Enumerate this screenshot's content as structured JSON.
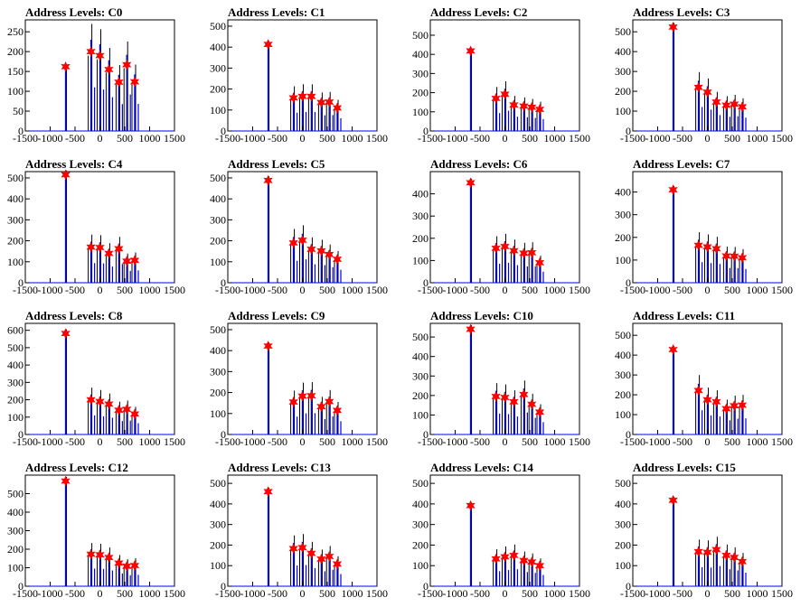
{
  "chart_data": [
    {
      "type": "histogram",
      "title": "Address Levels: C0",
      "xlim": [
        -1500,
        1500
      ],
      "ylim": [
        0,
        280
      ],
      "xticks": [
        -1500,
        -1000,
        -500,
        0,
        500,
        1000,
        1500
      ],
      "yticks": [
        0,
        50,
        100,
        150,
        200,
        250
      ],
      "xtick_labels": [
        "-1500",
        "-1000",
        "-500",
        "0",
        "500",
        "1000",
        "1500"
      ],
      "ytick_labels": [
        "0",
        "50",
        "100",
        "150",
        "200",
        "250"
      ],
      "markers": [
        {
          "x": -690,
          "y": 162
        },
        {
          "x": -180,
          "y": 200
        },
        {
          "x": 0,
          "y": 190
        },
        {
          "x": 180,
          "y": 155
        },
        {
          "x": 380,
          "y": 123
        },
        {
          "x": 540,
          "y": 167
        },
        {
          "x": 700,
          "y": 124
        }
      ]
    },
    {
      "type": "histogram",
      "title": "Address Levels: C1",
      "xlim": [
        -1500,
        1500
      ],
      "ylim": [
        0,
        530
      ],
      "xticks": [
        -1500,
        -1000,
        -500,
        0,
        500,
        1000,
        1500
      ],
      "yticks": [
        0,
        100,
        200,
        300,
        400,
        500
      ],
      "xtick_labels": [
        "-1500",
        "-1000",
        "-500",
        "0",
        "500",
        "1000",
        "1500"
      ],
      "ytick_labels": [
        "0",
        "100",
        "200",
        "300",
        "400",
        "500"
      ],
      "markers": [
        {
          "x": -690,
          "y": 413
        },
        {
          "x": -180,
          "y": 158
        },
        {
          "x": 0,
          "y": 165
        },
        {
          "x": 180,
          "y": 165
        },
        {
          "x": 380,
          "y": 136
        },
        {
          "x": 540,
          "y": 138
        },
        {
          "x": 700,
          "y": 110
        }
      ]
    },
    {
      "type": "histogram",
      "title": "Address Levels: C2",
      "xlim": [
        -1500,
        1500
      ],
      "ylim": [
        0,
        580
      ],
      "xticks": [
        -1500,
        -1000,
        -500,
        0,
        500,
        1000,
        1500
      ],
      "yticks": [
        0,
        100,
        200,
        300,
        400,
        500
      ],
      "xtick_labels": [
        "-1500",
        "-1000",
        "-500",
        "0",
        "500",
        "1000",
        "1500"
      ],
      "ytick_labels": [
        "0",
        "100",
        "200",
        "300",
        "400",
        "500"
      ],
      "markers": [
        {
          "x": -690,
          "y": 418
        },
        {
          "x": -180,
          "y": 170
        },
        {
          "x": 0,
          "y": 192
        },
        {
          "x": 180,
          "y": 136
        },
        {
          "x": 380,
          "y": 130
        },
        {
          "x": 540,
          "y": 124
        },
        {
          "x": 700,
          "y": 113
        }
      ]
    },
    {
      "type": "histogram",
      "title": "Address Levels: C3",
      "xlim": [
        -1500,
        1500
      ],
      "ylim": [
        0,
        560
      ],
      "xticks": [
        -1500,
        -1000,
        -500,
        0,
        500,
        1000,
        1500
      ],
      "yticks": [
        0,
        100,
        200,
        300,
        400,
        500
      ],
      "xtick_labels": [
        "-1500",
        "-1000",
        "-500",
        "0",
        "500",
        "1000",
        "1500"
      ],
      "ytick_labels": [
        "0",
        "100",
        "200",
        "300",
        "400",
        "500"
      ],
      "markers": [
        {
          "x": -690,
          "y": 524
        },
        {
          "x": -180,
          "y": 220
        },
        {
          "x": 0,
          "y": 196
        },
        {
          "x": 180,
          "y": 146
        },
        {
          "x": 380,
          "y": 130
        },
        {
          "x": 540,
          "y": 135
        },
        {
          "x": 700,
          "y": 122
        }
      ]
    },
    {
      "type": "histogram",
      "title": "Address Levels: C4",
      "xlim": [
        -1500,
        1500
      ],
      "ylim": [
        0,
        530
      ],
      "xticks": [
        -1500,
        -1000,
        -500,
        0,
        500,
        1000,
        1500
      ],
      "yticks": [
        0,
        100,
        200,
        300,
        400,
        500
      ],
      "xtick_labels": [
        "-1500",
        "-1000",
        "-500",
        "0",
        "500",
        "1000",
        "1500"
      ],
      "ytick_labels": [
        "0",
        "100",
        "200",
        "300",
        "400",
        "500"
      ],
      "markers": [
        {
          "x": -690,
          "y": 515
        },
        {
          "x": -180,
          "y": 170
        },
        {
          "x": 0,
          "y": 168
        },
        {
          "x": 180,
          "y": 140
        },
        {
          "x": 380,
          "y": 162
        },
        {
          "x": 540,
          "y": 103
        },
        {
          "x": 700,
          "y": 107
        }
      ]
    },
    {
      "type": "histogram",
      "title": "Address Levels: C5",
      "xlim": [
        -1500,
        1500
      ],
      "ylim": [
        0,
        530
      ],
      "xticks": [
        -1500,
        -1000,
        -500,
        0,
        500,
        1000,
        1500
      ],
      "yticks": [
        0,
        100,
        200,
        300,
        400,
        500
      ],
      "xtick_labels": [
        "-1500",
        "-1000",
        "-500",
        "0",
        "500",
        "1000",
        "1500"
      ],
      "ytick_labels": [
        "0",
        "100",
        "200",
        "300",
        "400",
        "500"
      ],
      "markers": [
        {
          "x": -690,
          "y": 488
        },
        {
          "x": -180,
          "y": 190
        },
        {
          "x": 0,
          "y": 203
        },
        {
          "x": 180,
          "y": 160
        },
        {
          "x": 380,
          "y": 152
        },
        {
          "x": 540,
          "y": 135
        },
        {
          "x": 700,
          "y": 112
        }
      ]
    },
    {
      "type": "histogram",
      "title": "Address Levels: C6",
      "xlim": [
        -1500,
        1500
      ],
      "ylim": [
        0,
        500
      ],
      "xticks": [
        -1500,
        -1000,
        -500,
        0,
        500,
        1000,
        1500
      ],
      "yticks": [
        0,
        100,
        200,
        300,
        400
      ],
      "xtick_labels": [
        "-1500",
        "-1000",
        "-500",
        "0",
        "500",
        "1000",
        "1500"
      ],
      "ytick_labels": [
        "0",
        "100",
        "200",
        "300",
        "400"
      ],
      "markers": [
        {
          "x": -690,
          "y": 450
        },
        {
          "x": -180,
          "y": 155
        },
        {
          "x": 0,
          "y": 163
        },
        {
          "x": 180,
          "y": 144
        },
        {
          "x": 380,
          "y": 133
        },
        {
          "x": 540,
          "y": 135
        },
        {
          "x": 700,
          "y": 90
        }
      ]
    },
    {
      "type": "histogram",
      "title": "Address Levels: C7",
      "xlim": [
        -1500,
        1500
      ],
      "ylim": [
        0,
        490
      ],
      "xticks": [
        -1500,
        -1000,
        -500,
        0,
        500,
        1000,
        1500
      ],
      "yticks": [
        0,
        100,
        200,
        300,
        400
      ],
      "xtick_labels": [
        "-1500",
        "-1000",
        "-500",
        "0",
        "500",
        "1000",
        "1500"
      ],
      "ytick_labels": [
        "0",
        "100",
        "200",
        "300",
        "400"
      ],
      "markers": [
        {
          "x": -690,
          "y": 410
        },
        {
          "x": -180,
          "y": 165
        },
        {
          "x": 0,
          "y": 158
        },
        {
          "x": 180,
          "y": 150
        },
        {
          "x": 380,
          "y": 118
        },
        {
          "x": 540,
          "y": 117
        },
        {
          "x": 700,
          "y": 110
        }
      ]
    },
    {
      "type": "histogram",
      "title": "Address Levels: C8",
      "xlim": [
        -1500,
        1500
      ],
      "ylim": [
        0,
        640
      ],
      "xticks": [
        -1500,
        -1000,
        -500,
        0,
        500,
        1000,
        1500
      ],
      "yticks": [
        0,
        100,
        200,
        300,
        400,
        500,
        600
      ],
      "xtick_labels": [
        "-1500",
        "-1000",
        "-500",
        "0",
        "500",
        "1000",
        "1500"
      ],
      "ytick_labels": [
        "0",
        "100",
        "200",
        "300",
        "400",
        "500",
        "600"
      ],
      "markers": [
        {
          "x": -690,
          "y": 582
        },
        {
          "x": -180,
          "y": 200
        },
        {
          "x": 0,
          "y": 190
        },
        {
          "x": 180,
          "y": 175
        },
        {
          "x": 380,
          "y": 140
        },
        {
          "x": 540,
          "y": 145
        },
        {
          "x": 700,
          "y": 118
        }
      ]
    },
    {
      "type": "histogram",
      "title": "Address Levels: C9",
      "xlim": [
        -1500,
        1500
      ],
      "ylim": [
        0,
        530
      ],
      "xticks": [
        -1500,
        -1000,
        -500,
        0,
        500,
        1000,
        1500
      ],
      "yticks": [
        0,
        100,
        200,
        300,
        400,
        500
      ],
      "xtick_labels": [
        "-1500",
        "-1000",
        "-500",
        "0",
        "500",
        "1000",
        "1500"
      ],
      "ytick_labels": [
        "0",
        "100",
        "200",
        "300",
        "400",
        "500"
      ],
      "markers": [
        {
          "x": -690,
          "y": 422
        },
        {
          "x": -180,
          "y": 155
        },
        {
          "x": 0,
          "y": 183
        },
        {
          "x": 180,
          "y": 185
        },
        {
          "x": 380,
          "y": 133
        },
        {
          "x": 540,
          "y": 157
        },
        {
          "x": 700,
          "y": 115
        }
      ]
    },
    {
      "type": "histogram",
      "title": "Address Levels: C10",
      "xlim": [
        -1500,
        1500
      ],
      "ylim": [
        0,
        570
      ],
      "xticks": [
        -1500,
        -1000,
        -500,
        0,
        500,
        1000,
        1500
      ],
      "yticks": [
        0,
        100,
        200,
        300,
        400,
        500
      ],
      "xtick_labels": [
        "-1500",
        "-1000",
        "-500",
        "0",
        "500",
        "1000",
        "1500"
      ],
      "ytick_labels": [
        "0",
        "100",
        "200",
        "300",
        "400",
        "500"
      ],
      "markers": [
        {
          "x": -690,
          "y": 540
        },
        {
          "x": -180,
          "y": 195
        },
        {
          "x": 0,
          "y": 190
        },
        {
          "x": 180,
          "y": 168
        },
        {
          "x": 380,
          "y": 205
        },
        {
          "x": 540,
          "y": 155
        },
        {
          "x": 700,
          "y": 115
        }
      ]
    },
    {
      "type": "histogram",
      "title": "Address Levels: C11",
      "xlim": [
        -1500,
        1500
      ],
      "ylim": [
        0,
        560
      ],
      "xticks": [
        -1500,
        -1000,
        -500,
        0,
        500,
        1000,
        1500
      ],
      "yticks": [
        0,
        100,
        200,
        300,
        400,
        500
      ],
      "xtick_labels": [
        "-1500",
        "-1000",
        "-500",
        "0",
        "500",
        "1000",
        "1500"
      ],
      "ytick_labels": [
        "0",
        "100",
        "200",
        "300",
        "400",
        "500"
      ],
      "markers": [
        {
          "x": -690,
          "y": 428
        },
        {
          "x": -180,
          "y": 222
        },
        {
          "x": 0,
          "y": 175
        },
        {
          "x": 180,
          "y": 165
        },
        {
          "x": 380,
          "y": 130
        },
        {
          "x": 540,
          "y": 145
        },
        {
          "x": 700,
          "y": 148
        }
      ]
    },
    {
      "type": "histogram",
      "title": "Address Levels: C12",
      "xlim": [
        -1500,
        1500
      ],
      "ylim": [
        0,
        600
      ],
      "xticks": [
        -1500,
        -1000,
        -500,
        0,
        500,
        1000,
        1500
      ],
      "yticks": [
        0,
        100,
        200,
        300,
        400,
        500
      ],
      "xtick_labels": [
        "-1500",
        "-1000",
        "-500",
        "0",
        "500",
        "1000",
        "1500"
      ],
      "ytick_labels": [
        "0",
        "100",
        "200",
        "300",
        "400",
        "500"
      ],
      "markers": [
        {
          "x": -690,
          "y": 568
        },
        {
          "x": -180,
          "y": 173
        },
        {
          "x": 0,
          "y": 170
        },
        {
          "x": 180,
          "y": 155
        },
        {
          "x": 380,
          "y": 125
        },
        {
          "x": 540,
          "y": 108
        },
        {
          "x": 700,
          "y": 112
        }
      ]
    },
    {
      "type": "histogram",
      "title": "Address Levels: C13",
      "xlim": [
        -1500,
        1500
      ],
      "ylim": [
        0,
        540
      ],
      "xticks": [
        -1500,
        -1000,
        -500,
        0,
        500,
        1000,
        1500
      ],
      "yticks": [
        0,
        100,
        200,
        300,
        400,
        500
      ],
      "xtick_labels": [
        "-1500",
        "-1000",
        "-500",
        "0",
        "500",
        "1000",
        "1500"
      ],
      "ytick_labels": [
        "0",
        "100",
        "200",
        "300",
        "400",
        "500"
      ],
      "markers": [
        {
          "x": -690,
          "y": 460
        },
        {
          "x": -180,
          "y": 183
        },
        {
          "x": 0,
          "y": 188
        },
        {
          "x": 180,
          "y": 160
        },
        {
          "x": 380,
          "y": 132
        },
        {
          "x": 540,
          "y": 145
        },
        {
          "x": 700,
          "y": 108
        }
      ]
    },
    {
      "type": "histogram",
      "title": "Address Levels: C14",
      "xlim": [
        -1500,
        1500
      ],
      "ylim": [
        0,
        540
      ],
      "xticks": [
        -1500,
        -1000,
        -500,
        0,
        500,
        1000,
        1500
      ],
      "yticks": [
        0,
        100,
        200,
        300,
        400,
        500
      ],
      "xtick_labels": [
        "-1500",
        "-1000",
        "-500",
        "0",
        "500",
        "1000",
        "1500"
      ],
      "ytick_labels": [
        "0",
        "100",
        "200",
        "300",
        "400",
        "500"
      ],
      "markers": [
        {
          "x": -690,
          "y": 392
        },
        {
          "x": -180,
          "y": 133
        },
        {
          "x": 0,
          "y": 143
        },
        {
          "x": 180,
          "y": 150
        },
        {
          "x": 380,
          "y": 125
        },
        {
          "x": 540,
          "y": 118
        },
        {
          "x": 700,
          "y": 100
        }
      ]
    },
    {
      "type": "histogram",
      "title": "Address Levels: C15",
      "xlim": [
        -1500,
        1500
      ],
      "ylim": [
        0,
        540
      ],
      "xticks": [
        -1500,
        -1000,
        -500,
        0,
        500,
        1000,
        1500
      ],
      "yticks": [
        0,
        100,
        200,
        300,
        400,
        500
      ],
      "xtick_labels": [
        "-1500",
        "-1000",
        "-500",
        "0",
        "500",
        "1000",
        "1500"
      ],
      "ytick_labels": [
        "0",
        "100",
        "200",
        "300",
        "400",
        "500"
      ],
      "markers": [
        {
          "x": -690,
          "y": 418
        },
        {
          "x": -180,
          "y": 168
        },
        {
          "x": 0,
          "y": 165
        },
        {
          "x": 180,
          "y": 178
        },
        {
          "x": 380,
          "y": 150
        },
        {
          "x": 540,
          "y": 140
        },
        {
          "x": 700,
          "y": 120
        }
      ]
    }
  ],
  "colors": {
    "histogram": "#0000ff",
    "spike": "#000000",
    "marker": "#ff0000",
    "axis": "#000000"
  }
}
